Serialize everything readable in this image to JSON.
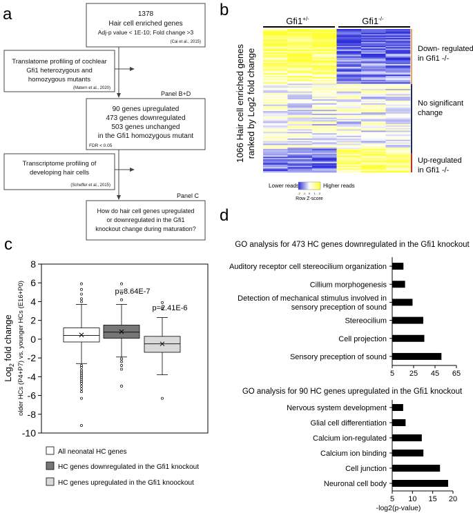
{
  "panel_labels": {
    "a": "a",
    "b": "b",
    "c": "c",
    "d": "d"
  },
  "flowchart": {
    "box1": [
      "1378",
      "Hair cell enriched genes",
      "Adj-p value < 1E-10; Fold change >3",
      "(Cai et al., 2015)"
    ],
    "box2": [
      "Translatome profiling of cochlear",
      "Gfi1 heterozygous and",
      "homozygous mutants",
      "(Matern et al., 2020)"
    ],
    "panel_bd": "Panel B+D",
    "box3": [
      "90 genes upregulated",
      "473 genes downregulated",
      "503 genes unchanged",
      "in the Gfi1 homozygous mutant",
      "FDR < 0.05"
    ],
    "box4": [
      "Transcriptome profiling of",
      "developing hair cells",
      "(Scheffer et al., 2015)"
    ],
    "panel_c": "Panel C",
    "box5": [
      "How do hair cell genes upregulated",
      "or downregulated in the Gfi1",
      "knockout change during maturation?"
    ]
  },
  "heatmap": {
    "col_left": "Gfi1",
    "col_left_sup": "+/-",
    "col_right": "Gfi1",
    "col_right_sup": "-/-",
    "ylabel_line1": "1066 Hair cell enriched genes",
    "ylabel_line2": "ranked by Log2 fold change",
    "group_down": [
      "Down- regulated",
      "in Gfi1 -/-"
    ],
    "group_none": [
      "No significant",
      "change"
    ],
    "group_up": [
      "Up-regulated",
      "in Gfi1 -/-"
    ],
    "legend_low": "Lower reads",
    "legend_high": "Higher reads",
    "legend_ticks": [
      "-2",
      "-1",
      "0",
      "1",
      "2"
    ],
    "legend_title": "Row Z-score",
    "colors": {
      "low": "#2b2fd9",
      "mid": "#ffffff",
      "high": "#ffff33"
    }
  },
  "chart_data": [
    {
      "type": "boxplot",
      "panel": "c",
      "ylabel_main": "Log",
      "ylabel_sub": "2",
      "ylabel_rest": " fold change",
      "ylabel_secondary": "older HCs (P4+P7) vs. younger HCs (E16+P0)",
      "ylim": [
        -10,
        8
      ],
      "yticks": [
        -10,
        -8,
        -6,
        -4,
        -2,
        0,
        2,
        4,
        6,
        8
      ],
      "annotations": [
        "p=8.64E-7",
        "p=2.41E-6"
      ],
      "legend": [
        "All neonatal HC genes",
        "HC genes downregulated in the Gfi1 knockout",
        "HC genes upregulated in the Gfi1 knoockout"
      ],
      "series": [
        {
          "name": "All neonatal HC genes",
          "color": "#ffffff",
          "min": -2.6,
          "q1": -0.3,
          "median": 0.4,
          "q3": 1.2,
          "max": 3.7,
          "mean": 0.45,
          "outliers": [
            5.9,
            5.3,
            4.8,
            4.3,
            4.0,
            -2.8,
            -3.0,
            -3.3,
            -3.5,
            -3.7,
            -3.9,
            -4.1,
            -4.3,
            -4.5,
            -4.7,
            -5.0,
            -5.3,
            -5.6,
            -6.3,
            -9.2
          ]
        },
        {
          "name": "HC genes downregulated in the Gfi1 knockout",
          "color": "#777777",
          "min": -1.9,
          "q1": 0.1,
          "median": 0.75,
          "q3": 1.5,
          "max": 3.7,
          "mean": 0.8,
          "outliers": [
            5.9,
            4.9,
            4.2,
            -2.1,
            -2.4,
            -2.8,
            -3.2,
            -5.0
          ]
        },
        {
          "name": "HC genes upregulated in the Gfi1 knoockout",
          "color": "#d9d9d9",
          "min": -3.8,
          "q1": -1.4,
          "median": -0.5,
          "q3": 0.3,
          "max": 2.3,
          "mean": -0.5,
          "outliers": [
            3.9,
            3.3,
            -6.3
          ]
        }
      ]
    },
    {
      "type": "bar",
      "orientation": "horizontal",
      "panel": "d-top",
      "title": "GO analysis for 473 HC genes downregulated in the Gfi1 knockout",
      "categories": [
        "Auditory receptor cell stereocilium organization",
        "Cillium morphogenesis",
        "Detection of mechanical stimulus involved in sensory preception of sound",
        "Stereocilium",
        "Cell projection",
        "Sensory preception of sound"
      ],
      "category_lines": [
        [
          "Auditory receptor cell stereocilium organization"
        ],
        [
          "Cillium morphogenesis"
        ],
        [
          "Detection of mechanical stimulus involved in",
          "sensory preception of sound"
        ],
        [
          "Stereocilium"
        ],
        [
          "Cell projection"
        ],
        [
          "Sensory preception of sound"
        ]
      ],
      "values": [
        15.5,
        17,
        24,
        34,
        35,
        51
      ],
      "xlim": [
        5,
        65
      ],
      "xticks": [
        5,
        25,
        45,
        65
      ]
    },
    {
      "type": "bar",
      "orientation": "horizontal",
      "panel": "d-bottom",
      "title": "GO analysis for 90 HC genes upregulated in the Gfi1 knockout",
      "categories": [
        "Nervous system development",
        "Glial cell differentiation",
        "Calcium ion-regulated",
        "Calcium ion binding",
        "Cell junction",
        "Neuronal cell body"
      ],
      "values": [
        7.7,
        8.3,
        12.3,
        12.7,
        16.8,
        18.8
      ],
      "xlim": [
        5,
        20
      ],
      "xticks": [
        5,
        10,
        15,
        20
      ],
      "xlabel": "-log2(p-value)"
    }
  ]
}
